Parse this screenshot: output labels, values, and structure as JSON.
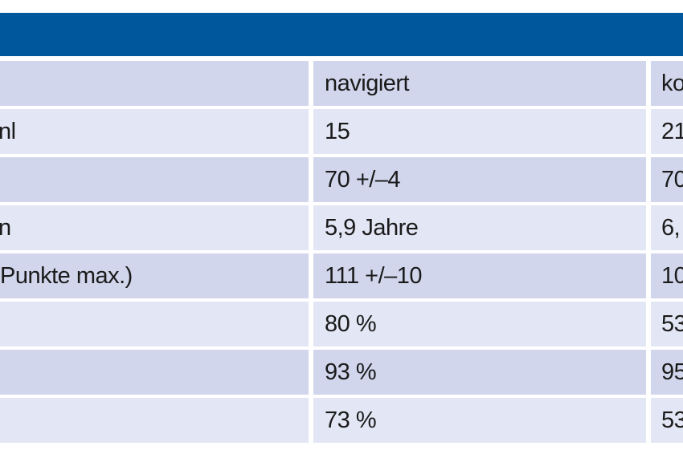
{
  "table": {
    "header": [
      "",
      "navigiert",
      "ko"
    ],
    "rows": [
      [
        "nl",
        "15",
        "21"
      ],
      [
        "",
        "70 +/–4",
        "70"
      ],
      [
        "n",
        "5,9 Jahre",
        "6,"
      ],
      [
        "Punkte max.)",
        "111 +/–10",
        "10"
      ],
      [
        "",
        "80 %",
        "53"
      ],
      [
        "",
        "93 %",
        "95"
      ],
      [
        "",
        "73 %",
        "53"
      ]
    ]
  },
  "colors": {
    "header_bar": "#00579b",
    "row_light": "#e3e6f4",
    "row_dark": "#d1d6ec"
  }
}
